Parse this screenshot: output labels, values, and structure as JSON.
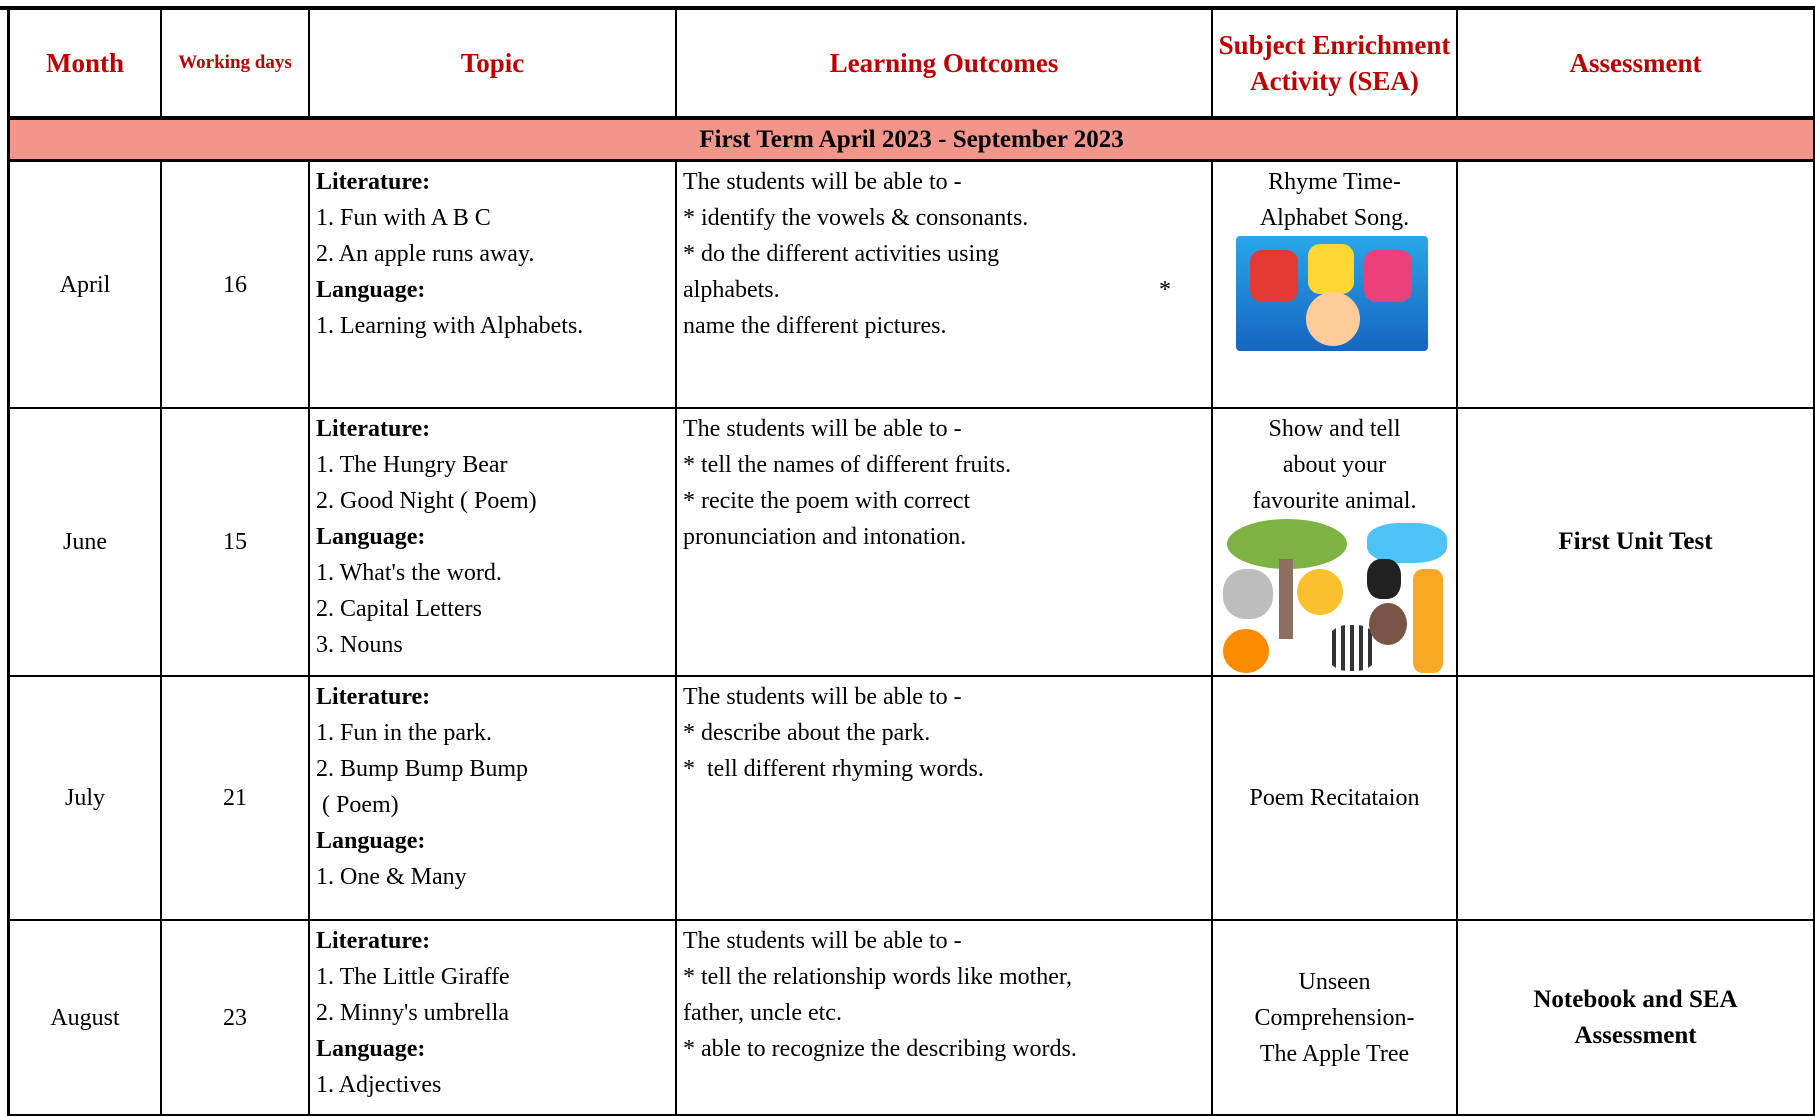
{
  "header": {
    "columns": [
      "Month",
      "Working days",
      "Topic",
      "Learning Outcomes",
      "Subject Enrichment Activity (SEA)",
      "Assessment"
    ]
  },
  "term_row": "First Term April 2023 - September 2023",
  "rows": [
    {
      "month": "April",
      "working_days": 16,
      "topic": [
        {
          "heading": "Literature:",
          "items": [
            "1. Fun with A B C",
            "2. An apple runs away."
          ]
        },
        {
          "heading": "Language:",
          "items": [
            "1. Learning with Alphabets."
          ]
        }
      ],
      "outcomes": [
        "The students will be able to -",
        "* identify the vowels & consonants.",
        "* do the different activities using",
        "alphabets.",
        "name the different pictures."
      ],
      "outcomes_marker": "*",
      "sea": [
        "Rhyme Time-",
        "Alphabet Song."
      ],
      "assessment": null
    },
    {
      "month": "June",
      "working_days": 15,
      "topic": [
        {
          "heading": "Literature:",
          "items": [
            "1. The Hungry Bear",
            "2. Good Night ( Poem)"
          ]
        },
        {
          "heading": "Language:",
          "items": [
            "1. What's the word.",
            "2. Capital Letters",
            "3. Nouns"
          ]
        }
      ],
      "outcomes": [
        "The students will be able to -",
        "* tell the names of different fruits.",
        "* recite the poem with correct",
        "pronunciation and intonation."
      ],
      "sea": [
        "Show and tell",
        "about your",
        "favourite animal."
      ],
      "assessment": "First Unit Test"
    },
    {
      "month": "July",
      "working_days": 21,
      "topic": [
        {
          "heading": "Literature:",
          "items": [
            "1. Fun in the park.",
            "2. Bump Bump Bump",
            " ( Poem)"
          ]
        },
        {
          "heading": "Language:",
          "items": [
            "1. One & Many"
          ]
        }
      ],
      "outcomes": [
        "The students will be able to -",
        "* describe about the park.",
        "*  tell different rhyming words."
      ],
      "sea": [
        "Poem Recitataion"
      ],
      "assessment": null
    },
    {
      "month": "August",
      "working_days": 23,
      "topic": [
        {
          "heading": "Literature:",
          "items": [
            "1. The Little Giraffe",
            "2. Minny's umbrella"
          ]
        },
        {
          "heading": "Language:",
          "items": [
            "1. Adjectives"
          ]
        }
      ],
      "outcomes": [
        "The students will be able to -",
        "* tell the relationship words like mother,",
        "father, uncle etc.",
        "* able to recognize the describing words."
      ],
      "sea": [
        "Unseen",
        "Comprehension-",
        "The Apple Tree"
      ],
      "assessment": "Notebook and SEA Assessment"
    }
  ]
}
